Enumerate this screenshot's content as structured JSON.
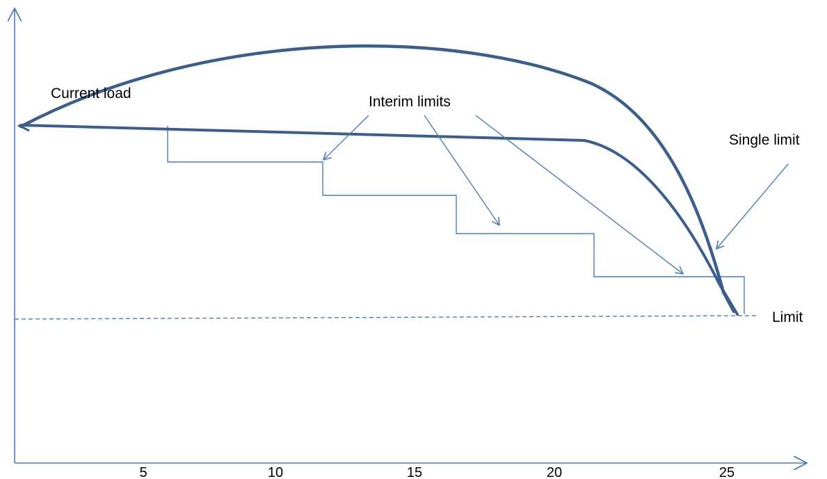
{
  "labels": {
    "current_load": "Current load",
    "interim_limits": "Interim limits",
    "single_limit": "Single limit",
    "limit": "Limit"
  },
  "x_ticks": [
    "5",
    "10",
    "15",
    "20",
    "25"
  ],
  "colors": {
    "curve": "#3a5f8f",
    "thin_line": "#4a7cc0",
    "text": "#000000"
  }
}
